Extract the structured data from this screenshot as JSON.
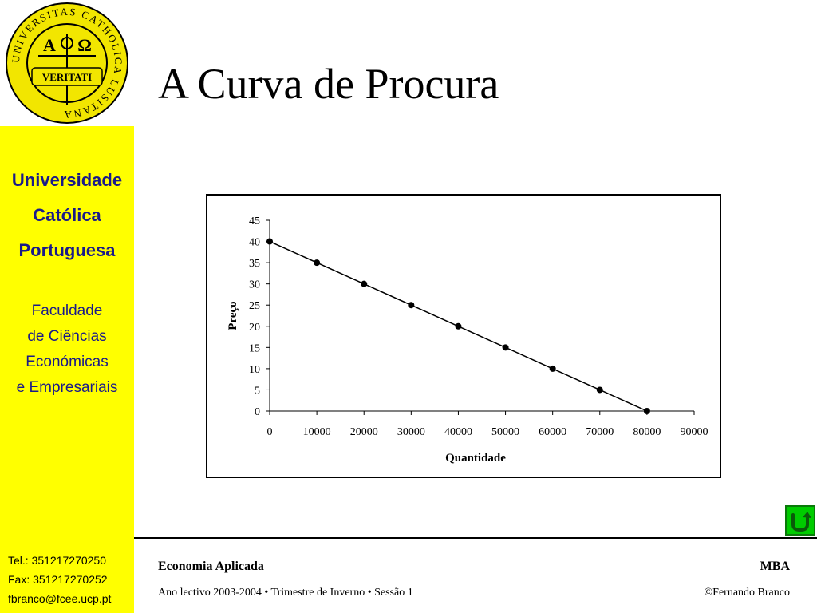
{
  "sidebar": {
    "seal": {
      "ring_text": "UNIVERSITAS CATHOLICA LUSITANA",
      "motto": "VERITATI",
      "alpha": "A",
      "omega": "Ω"
    },
    "university": [
      "Universidade",
      "Católica",
      "Portuguesa"
    ],
    "faculty": [
      "Faculdade",
      "de Ciências",
      "Económicas",
      "e Empresariais"
    ],
    "contact": [
      "Tel.: 351217270250",
      "Fax: 351217270252",
      "fbranco@fcee.ucp.pt"
    ],
    "colors": {
      "background": "#ffff00",
      "text": "#1a1a8a"
    }
  },
  "slide": {
    "title": "A Curva de Procura"
  },
  "chart_data": {
    "type": "line",
    "title": "",
    "xlabel": "Quantidade",
    "ylabel": "Preço",
    "x": [
      0,
      10000,
      20000,
      30000,
      40000,
      50000,
      60000,
      70000,
      80000
    ],
    "y": [
      40,
      35,
      30,
      25,
      20,
      15,
      10,
      5,
      0
    ],
    "xlim": [
      0,
      90000
    ],
    "ylim": [
      0,
      45
    ],
    "x_ticks": [
      0,
      10000,
      20000,
      30000,
      40000,
      50000,
      60000,
      70000,
      80000,
      90000
    ],
    "y_ticks": [
      0,
      5,
      10,
      15,
      20,
      25,
      30,
      35,
      40,
      45
    ],
    "grid": false,
    "legend": "none",
    "markers": "filled-circle",
    "line_color": "#000000"
  },
  "nav": {
    "icon": "return-icon",
    "color": "#00cc00"
  },
  "footer": {
    "course": "Economia Aplicada",
    "program": "MBA",
    "session": "Ano lectivo 2003-2004 • Trimestre de Inverno • Sessão 1",
    "author": "©Fernando Branco"
  }
}
